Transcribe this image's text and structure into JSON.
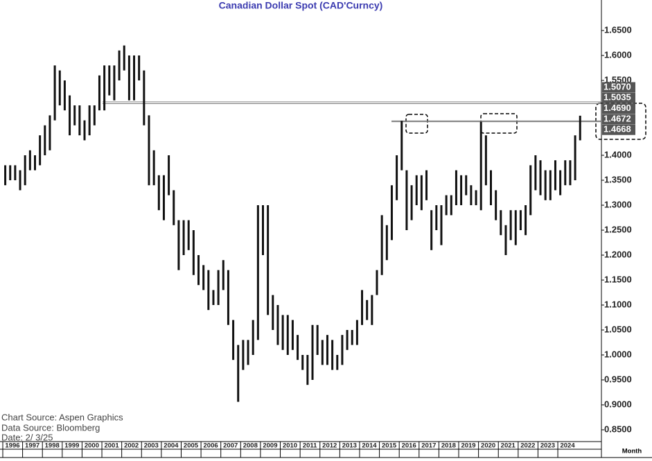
{
  "chart_data": {
    "type": "ohlc",
    "title": "Canadian Dollar Spot (CAD'Curncy)",
    "x": [
      1996.125,
      1996.375,
      1996.625,
      1996.875,
      1997.125,
      1997.375,
      1997.625,
      1997.875,
      1998.125,
      1998.375,
      1998.625,
      1998.875,
      1999.125,
      1999.375,
      1999.625,
      1999.875,
      2000.125,
      2000.375,
      2000.625,
      2000.875,
      2001.125,
      2001.375,
      2001.625,
      2001.875,
      2002.125,
      2002.375,
      2002.625,
      2002.875,
      2003.125,
      2003.375,
      2003.625,
      2003.875,
      2004.125,
      2004.375,
      2004.625,
      2004.875,
      2005.125,
      2005.375,
      2005.625,
      2005.875,
      2006.125,
      2006.375,
      2006.625,
      2006.875,
      2007.125,
      2007.375,
      2007.625,
      2007.875,
      2008.125,
      2008.375,
      2008.625,
      2008.875,
      2009.125,
      2009.375,
      2009.625,
      2009.875,
      2010.125,
      2010.375,
      2010.625,
      2010.875,
      2011.125,
      2011.375,
      2011.625,
      2011.875,
      2012.125,
      2012.375,
      2012.625,
      2012.875,
      2013.125,
      2013.375,
      2013.625,
      2013.875,
      2014.125,
      2014.375,
      2014.625,
      2014.875,
      2015.125,
      2015.375,
      2015.625,
      2015.875,
      2016.125,
      2016.375,
      2016.625,
      2016.875,
      2017.125,
      2017.375,
      2017.625,
      2017.875,
      2018.125,
      2018.375,
      2018.625,
      2018.875,
      2019.125,
      2019.375,
      2019.625,
      2019.875,
      2020.125,
      2020.375,
      2020.625,
      2020.875,
      2021.125,
      2021.375,
      2021.625,
      2021.875,
      2022.125,
      2022.375,
      2022.625,
      2022.875,
      2023.125,
      2023.375,
      2023.625,
      2023.875,
      2024.125,
      2024.375,
      2024.625,
      2024.875,
      2025.125
    ],
    "high": [
      1.38,
      1.38,
      1.38,
      1.37,
      1.4,
      1.41,
      1.4,
      1.44,
      1.46,
      1.48,
      1.58,
      1.57,
      1.55,
      1.52,
      1.5,
      1.5,
      1.47,
      1.5,
      1.5,
      1.56,
      1.58,
      1.58,
      1.58,
      1.61,
      1.62,
      1.6,
      1.6,
      1.6,
      1.57,
      1.48,
      1.41,
      1.36,
      1.36,
      1.4,
      1.33,
      1.27,
      1.27,
      1.27,
      1.25,
      1.2,
      1.18,
      1.17,
      1.13,
      1.17,
      1.19,
      1.17,
      1.07,
      1.02,
      1.03,
      1.03,
      1.07,
      1.3,
      1.3,
      1.3,
      1.12,
      1.1,
      1.08,
      1.08,
      1.07,
      1.04,
      1.0,
      1.0,
      1.06,
      1.06,
      1.03,
      1.04,
      1.03,
      1.0,
      1.04,
      1.05,
      1.05,
      1.07,
      1.13,
      1.11,
      1.12,
      1.17,
      1.28,
      1.26,
      1.34,
      1.4,
      1.469,
      1.37,
      1.34,
      1.36,
      1.36,
      1.37,
      1.29,
      1.3,
      1.3,
      1.32,
      1.32,
      1.37,
      1.36,
      1.36,
      1.34,
      1.33,
      1.4672,
      1.44,
      1.37,
      1.33,
      1.29,
      1.26,
      1.29,
      1.29,
      1.29,
      1.3,
      1.38,
      1.4,
      1.39,
      1.37,
      1.37,
      1.39,
      1.37,
      1.39,
      1.39,
      1.44,
      1.4793
    ],
    "low": [
      1.34,
      1.35,
      1.35,
      1.33,
      1.34,
      1.37,
      1.37,
      1.38,
      1.4,
      1.41,
      1.47,
      1.5,
      1.49,
      1.44,
      1.46,
      1.44,
      1.43,
      1.44,
      1.46,
      1.49,
      1.49,
      1.52,
      1.51,
      1.55,
      1.57,
      1.51,
      1.51,
      1.55,
      1.46,
      1.34,
      1.34,
      1.29,
      1.27,
      1.32,
      1.26,
      1.17,
      1.2,
      1.21,
      1.16,
      1.14,
      1.13,
      1.09,
      1.1,
      1.1,
      1.13,
      1.06,
      0.99,
      0.906,
      0.97,
      0.98,
      1.0,
      1.03,
      1.2,
      1.08,
      1.05,
      1.02,
      1.01,
      1.0,
      1.01,
      0.99,
      0.97,
      0.94,
      0.95,
      1.0,
      0.98,
      0.98,
      0.97,
      0.97,
      0.98,
      1.01,
      1.02,
      1.02,
      1.06,
      1.07,
      1.06,
      1.12,
      1.16,
      1.19,
      1.23,
      1.31,
      1.37,
      1.25,
      1.27,
      1.3,
      1.29,
      1.31,
      1.21,
      1.25,
      1.22,
      1.28,
      1.28,
      1.3,
      1.3,
      1.32,
      1.3,
      1.3,
      1.29,
      1.34,
      1.3,
      1.27,
      1.24,
      1.2,
      1.23,
      1.22,
      1.25,
      1.24,
      1.28,
      1.33,
      1.32,
      1.31,
      1.31,
      1.33,
      1.32,
      1.34,
      1.34,
      1.35,
      1.43
    ],
    "levels": [
      1.507,
      1.5035,
      1.469,
      1.4672
    ],
    "level_labels": [
      "1.5070",
      "1.5035",
      "1.4690",
      "1.4672"
    ],
    "last": 1.4668,
    "last_label": "1.4668",
    "xlim": [
      1996,
      2026.2
    ],
    "xticks": [
      1996,
      1997,
      1998,
      1999,
      2000,
      2001,
      2002,
      2003,
      2004,
      2005,
      2006,
      2007,
      2008,
      2009,
      2010,
      2011,
      2012,
      2013,
      2014,
      2015,
      2016,
      2017,
      2018,
      2019,
      2020,
      2021,
      2022,
      2023,
      2024
    ],
    "ylim": [
      0.8,
      1.7
    ],
    "yticks": [
      {
        "value": 0.85,
        "label": "0.8500"
      },
      {
        "value": 0.9,
        "label": "0.9000"
      },
      {
        "value": 0.95,
        "label": "0.9500"
      },
      {
        "value": 1.0,
        "label": "1.0000"
      },
      {
        "value": 1.05,
        "label": "1.0500"
      },
      {
        "value": 1.1,
        "label": "1.1000"
      },
      {
        "value": 1.15,
        "label": "1.1500"
      },
      {
        "value": 1.2,
        "label": "1.2000"
      },
      {
        "value": 1.25,
        "label": "1.2500"
      },
      {
        "value": 1.3,
        "label": "1.3000"
      },
      {
        "value": 1.35,
        "label": "1.3500"
      },
      {
        "value": 1.4,
        "label": "1.4000"
      },
      {
        "value": 1.55,
        "label": "1.5500"
      },
      {
        "value": 1.6,
        "label": "1.6000"
      },
      {
        "value": 1.65,
        "label": "1.6500"
      }
    ],
    "x_label": "Month",
    "notes": [
      "Chart Source:  Aspen  Graphics",
      "Data  Source:  Bloomberg",
      "Date:    2/  3/25"
    ]
  }
}
